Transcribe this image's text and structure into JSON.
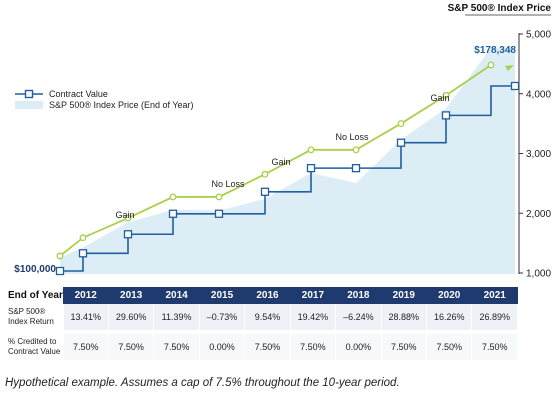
{
  "chart_data": {
    "type": "line",
    "years": [
      "2012",
      "2013",
      "2014",
      "2015",
      "2016",
      "2017",
      "2018",
      "2019",
      "2020",
      "2021"
    ],
    "legend": [
      "Contract Value",
      "S&P 500® Index Price (End of Year)"
    ],
    "right_axis": {
      "title": "S&P 500® Index Price",
      "ticks": [
        "5,000",
        "4,000",
        "3,000",
        "2,000",
        "1,000"
      ],
      "tick_values": [
        5000,
        4000,
        3000,
        2000,
        1000
      ],
      "ylim": [
        1000,
        5000
      ]
    },
    "contract_value": {
      "name": "Contract Value",
      "start_label": "$100,000",
      "end_label": "$178,348",
      "start": 100000,
      "values": [
        107500,
        115563,
        124230,
        124230,
        133547,
        143563,
        143563,
        154330,
        165905,
        178348
      ]
    },
    "sp500": {
      "name": "S&P 500® Index Price (End of Year)",
      "values": [
        1426,
        1848,
        2059,
        2044,
        2239,
        2674,
        2507,
        3231,
        3756,
        4766
      ]
    },
    "annotations": [
      "Gain",
      "No Loss",
      "Gain",
      "No Loss",
      "Gain"
    ]
  },
  "table": {
    "header_label": "End of Year",
    "rows": [
      {
        "label": "S&P 500®\nIndex Return",
        "values": [
          "13.41%",
          "29.60%",
          "11.39%",
          "–0.73%",
          "9.54%",
          "19.42%",
          "–6.24%",
          "28.88%",
          "16.26%",
          "26.89%"
        ]
      },
      {
        "label": "% Credited to\nContract Value",
        "values": [
          "7.50%",
          "7.50%",
          "7.50%",
          "0.00%",
          "7.50%",
          "7.50%",
          "0.00%",
          "7.50%",
          "7.50%",
          "7.50%"
        ]
      }
    ]
  },
  "caption": "Hypothetical example. Assumes a cap of 7.5% throughout the 10-year period.",
  "colors": {
    "navy": "#1e3a6e",
    "step_line": "#1f5f9e",
    "gain_line": "#a9cf4b",
    "area_fill": "#dcedf6"
  }
}
